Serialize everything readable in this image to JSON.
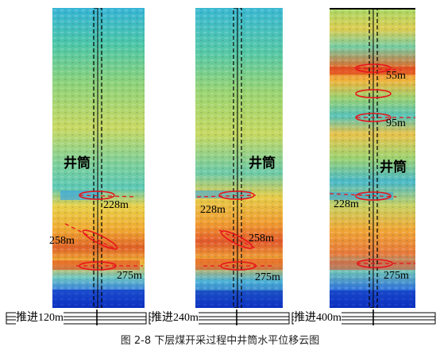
{
  "figure": {
    "caption": "图 2-8  下层煤开采过程中井筒水平位移云图"
  },
  "panels": [
    {
      "id": "p1",
      "shaft_label": "井筒",
      "advance_label": "推进120m",
      "annotations": [
        "228m",
        "258m",
        "275m"
      ],
      "colors": {
        "band_deep": "#0a3dd6",
        "band_hot": "#e0401c",
        "base": "#3fbfa0"
      }
    },
    {
      "id": "p2",
      "shaft_label": "井筒",
      "advance_label": "推进240m",
      "annotations": [
        "228m",
        "258m",
        "275m"
      ]
    },
    {
      "id": "p3",
      "shaft_label": "井筒",
      "advance_label": "推进400m",
      "annotations": [
        "55m",
        "95m",
        "228m",
        "275m"
      ]
    }
  ]
}
